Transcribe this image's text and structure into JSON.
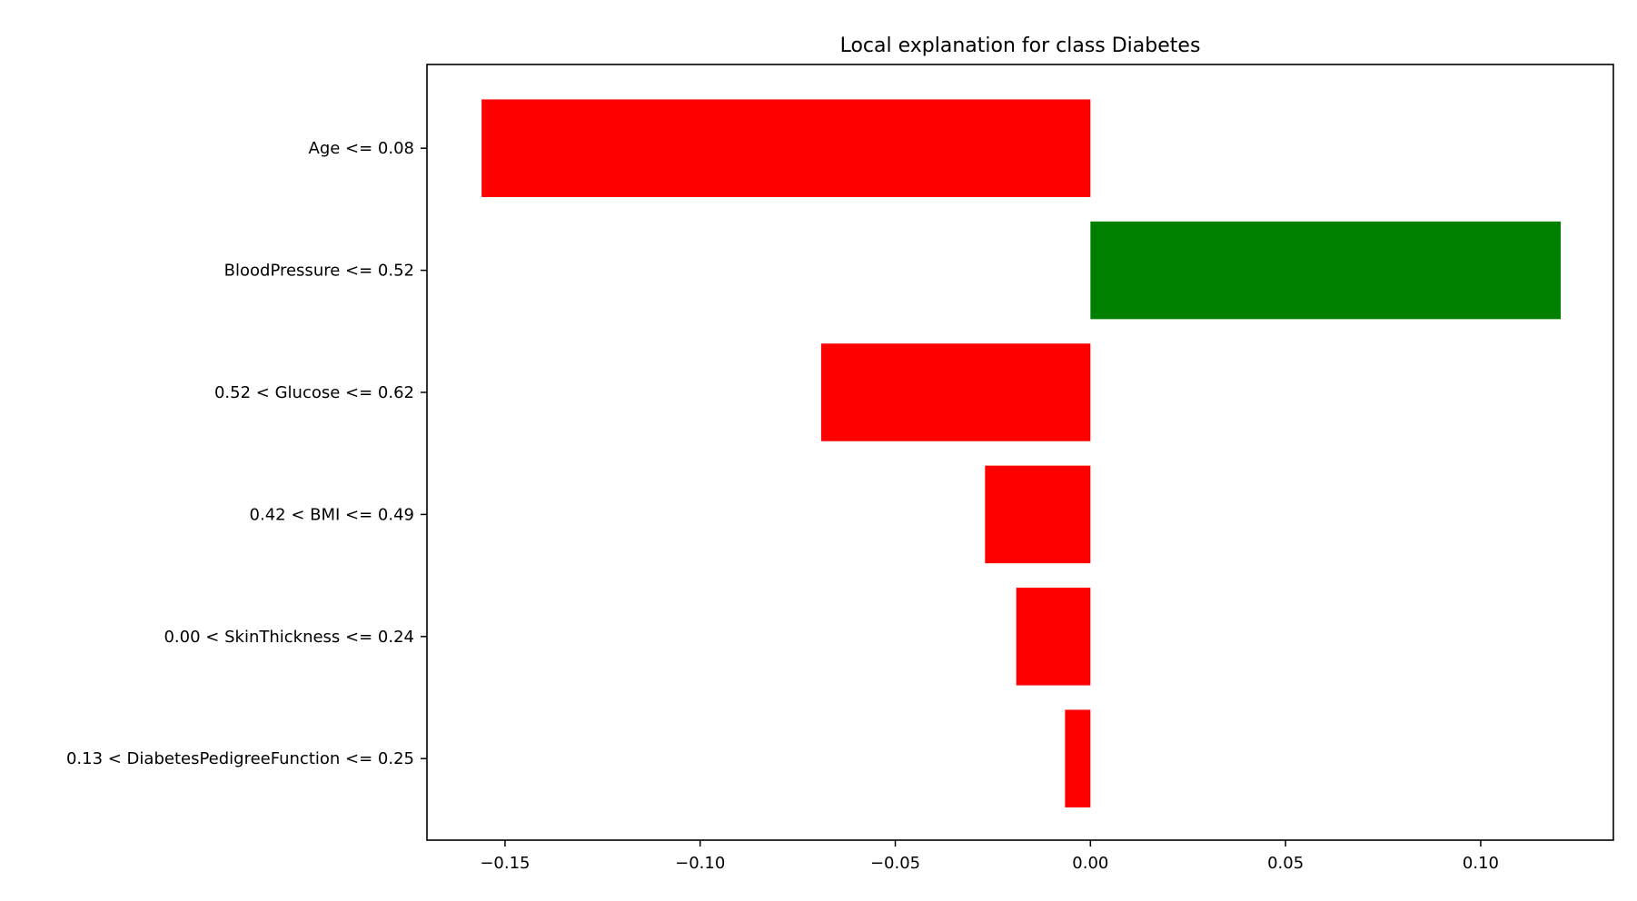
{
  "chart_data": {
    "type": "bar",
    "orientation": "horizontal",
    "title": "Local explanation for class Diabetes",
    "xlabel": "",
    "ylabel": "",
    "xlim": [
      -0.17,
      0.134
    ],
    "grid": false,
    "categories": [
      "Age <= 0.08",
      "BloodPressure <= 0.52",
      "0.52 < Glucose <= 0.62",
      "0.42 < BMI <= 0.49",
      "0.00 < SkinThickness <= 0.24",
      "0.13 < DiabetesPedigreeFunction <= 0.25"
    ],
    "values": [
      -0.156,
      0.1205,
      -0.069,
      -0.027,
      -0.019,
      -0.0065
    ],
    "xticks": [
      -0.15,
      -0.1,
      -0.05,
      0.0,
      0.05,
      0.1
    ],
    "xtick_labels": [
      "−0.15",
      "−0.10",
      "−0.05",
      "0.00",
      "0.05",
      "0.10"
    ],
    "colors": {
      "positive": "#008000",
      "negative": "#ff0000"
    }
  }
}
